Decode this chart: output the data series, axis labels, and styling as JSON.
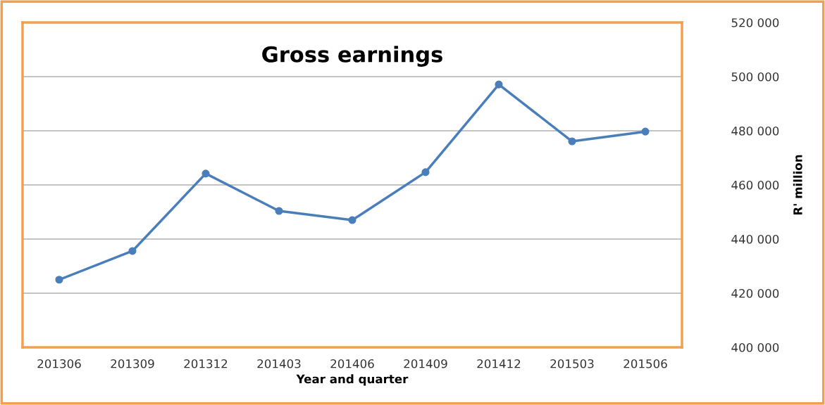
{
  "chart_data": {
    "type": "line",
    "title": "Gross earnings",
    "xlabel": "Year and quarter",
    "ylabel": "R' million",
    "categories": [
      "201306",
      "201309",
      "201312",
      "201403",
      "201406",
      "201409",
      "201412",
      "201503",
      "201506"
    ],
    "series": [
      {
        "color": "#4a7ebb",
        "values": [
          425000,
          435600,
          464200,
          450400,
          447000,
          464700,
          497100,
          476100,
          479700
        ]
      }
    ],
    "ylim": [
      400000,
      520000
    ],
    "yticks": [
      {
        "value": 400000,
        "label": "400 000"
      },
      {
        "value": 420000,
        "label": "420 000"
      },
      {
        "value": 440000,
        "label": "440 000"
      },
      {
        "value": 460000,
        "label": "460 000"
      },
      {
        "value": 480000,
        "label": "480 000"
      },
      {
        "value": 500000,
        "label": "500 000"
      },
      {
        "value": 520000,
        "label": "520 000"
      }
    ],
    "grid": "y",
    "marker": "circle",
    "line_style": "solid",
    "legend": false
  }
}
